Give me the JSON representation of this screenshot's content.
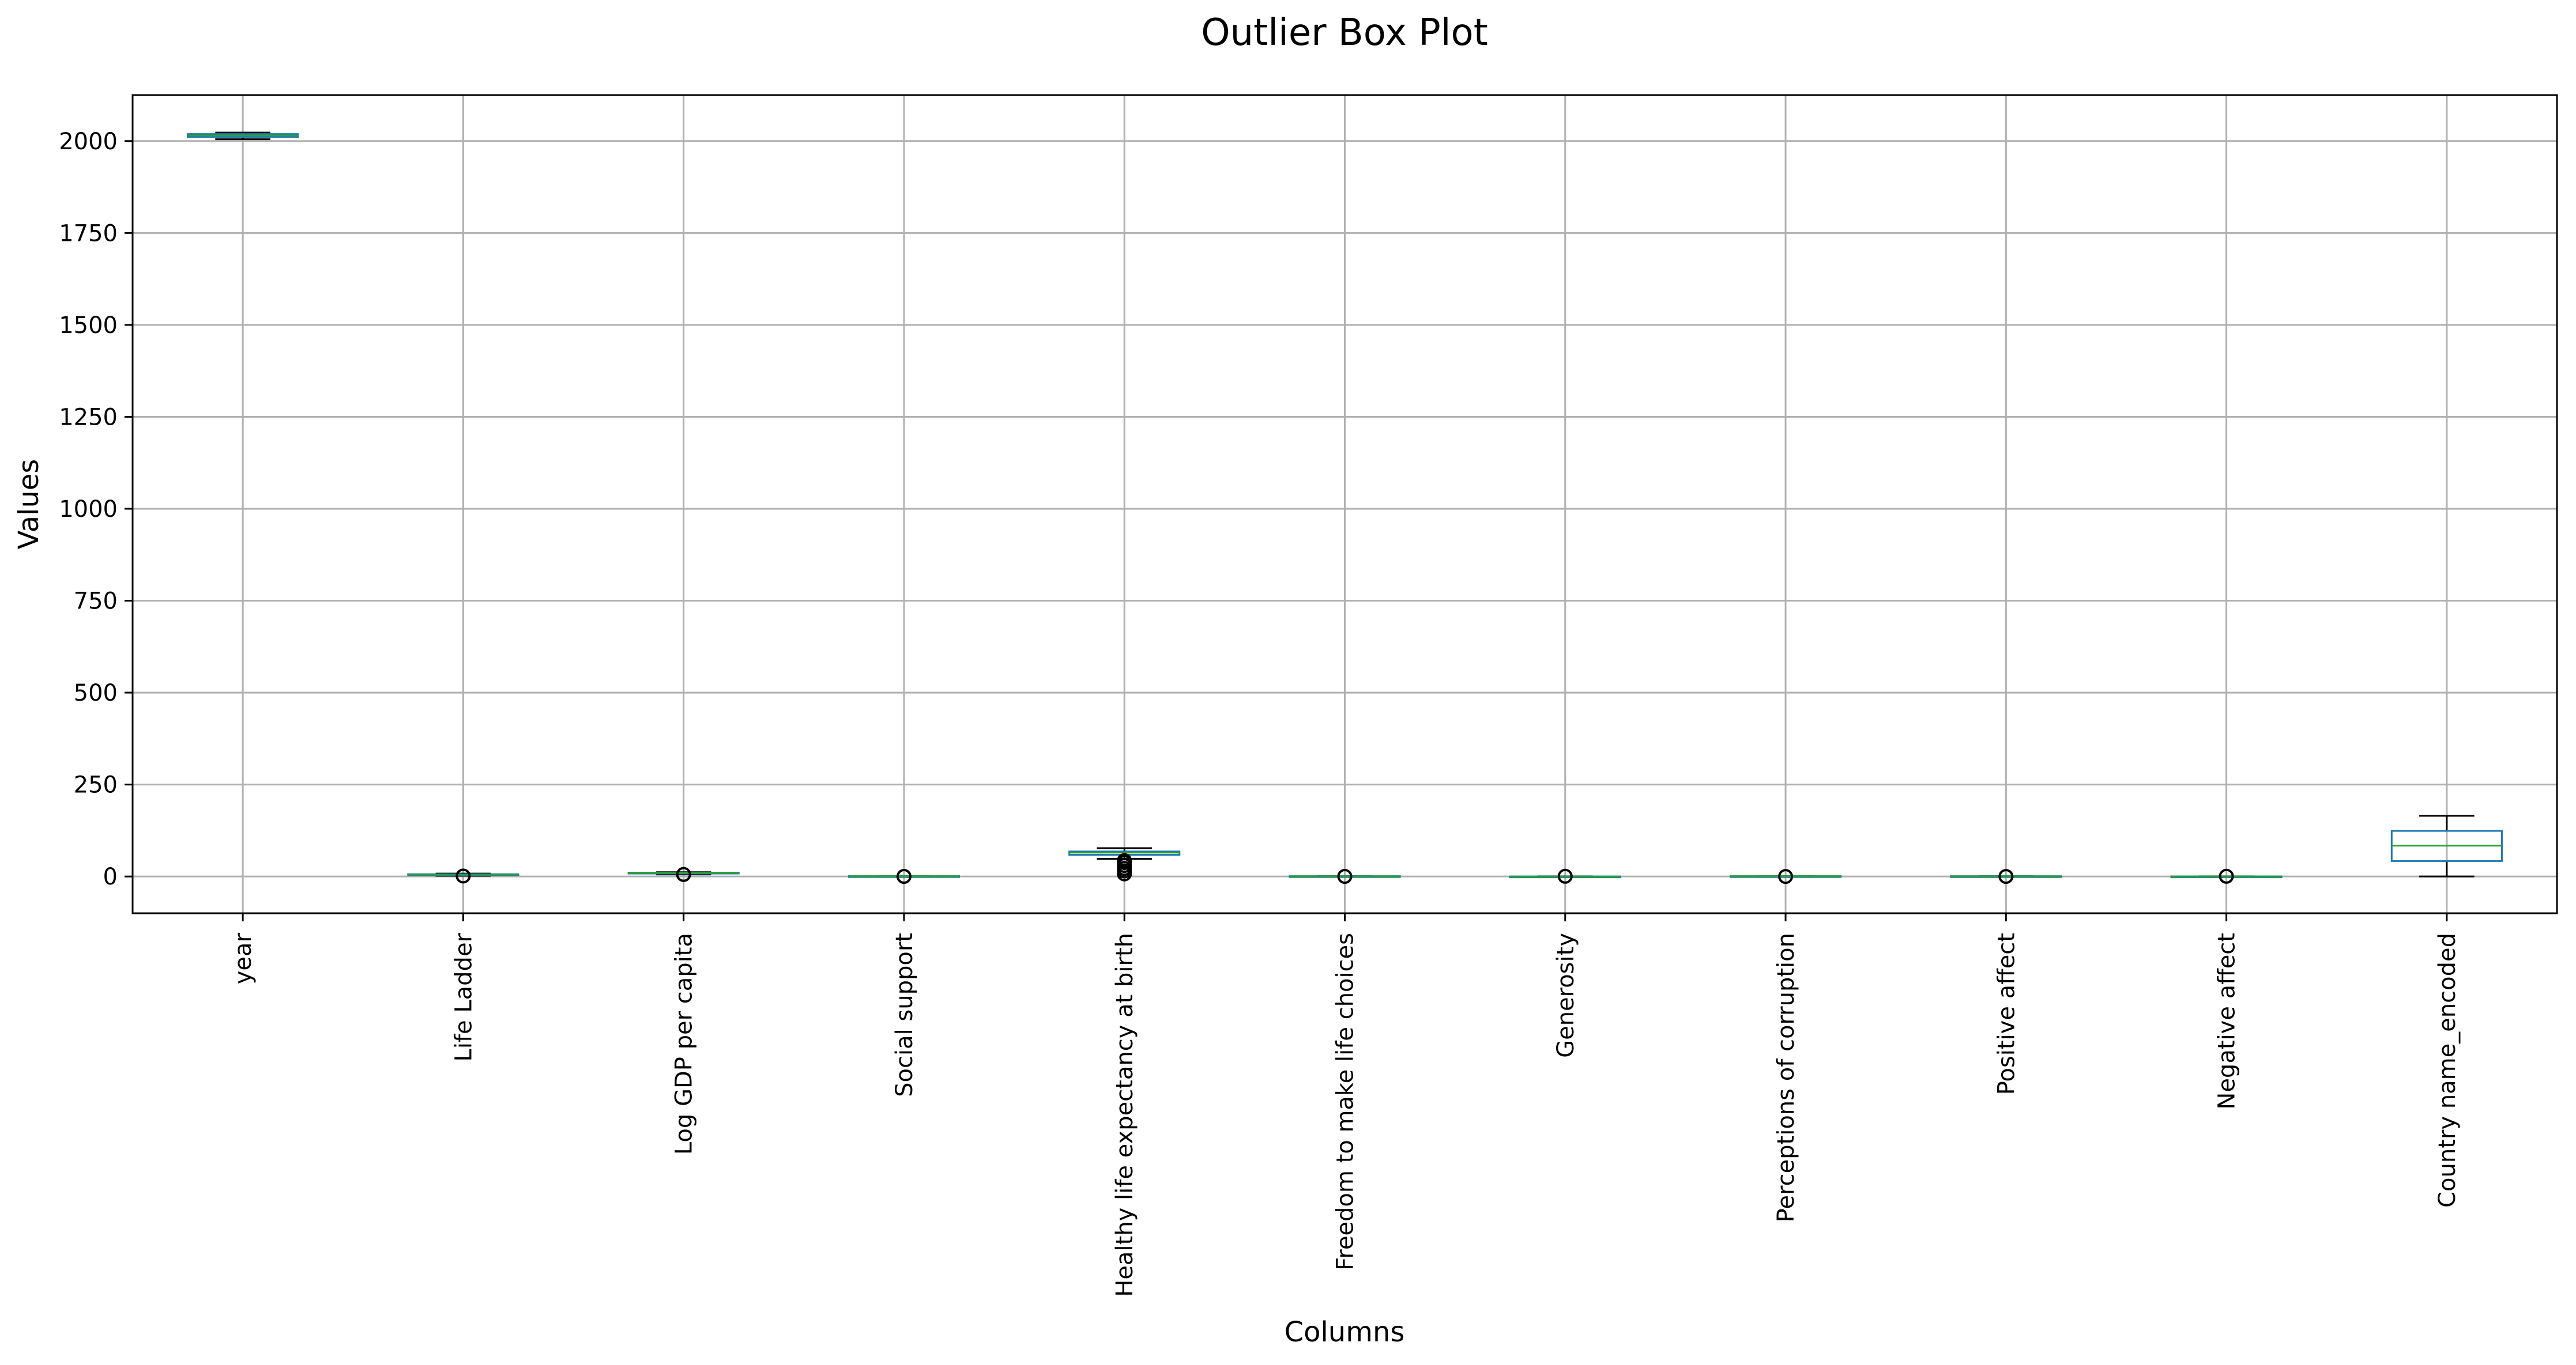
{
  "chart_data": {
    "type": "box",
    "title": "Outlier Box Plot",
    "xlabel": "Columns",
    "ylabel": "Values",
    "ylim": [
      -100,
      2125
    ],
    "yticks": [
      0,
      250,
      500,
      750,
      1000,
      1250,
      1500,
      1750,
      2000
    ],
    "grid": true,
    "series": [
      {
        "name": "year",
        "whislo": 2005,
        "q1": 2011,
        "med": 2015,
        "q3": 2019,
        "whishi": 2023,
        "fliers": []
      },
      {
        "name": "Life Ladder",
        "whislo": 2.0,
        "q1": 4.6,
        "med": 5.4,
        "q3": 6.2,
        "whishi": 8.0,
        "fliers": [
          1.3
        ]
      },
      {
        "name": "Log GDP per capita",
        "whislo": 5.5,
        "q1": 8.5,
        "med": 9.5,
        "q3": 10.4,
        "whishi": 11.7,
        "fliers": [
          5.5
        ]
      },
      {
        "name": "Social support",
        "whislo": 0.3,
        "q1": 0.75,
        "med": 0.83,
        "q3": 0.9,
        "whishi": 0.99,
        "fliers": [
          0.2
        ]
      },
      {
        "name": "Healthy life expectancy at birth",
        "whislo": 48,
        "q1": 59,
        "med": 65,
        "q3": 68,
        "whishi": 77,
        "fliers": [
          7,
          15,
          22,
          30,
          38,
          43
        ]
      },
      {
        "name": "Freedom to make life choices",
        "whislo": 0.35,
        "q1": 0.66,
        "med": 0.77,
        "q3": 0.86,
        "whishi": 0.99,
        "fliers": [
          0.25
        ]
      },
      {
        "name": "Generosity",
        "whislo": -0.3,
        "q1": -0.1,
        "med": -0.02,
        "q3": 0.09,
        "whishi": 0.4,
        "fliers": [
          0.6
        ]
      },
      {
        "name": "Perceptions of corruption",
        "whislo": 0.4,
        "q1": 0.69,
        "med": 0.8,
        "q3": 0.87,
        "whishi": 0.98,
        "fliers": [
          0.04
        ]
      },
      {
        "name": "Positive affect",
        "whislo": 0.3,
        "q1": 0.57,
        "med": 0.66,
        "q3": 0.74,
        "whishi": 0.88,
        "fliers": [
          0.18
        ]
      },
      {
        "name": "Negative affect",
        "whislo": 0.08,
        "q1": 0.21,
        "med": 0.26,
        "q3": 0.33,
        "whishi": 0.5,
        "fliers": [
          0.65
        ]
      },
      {
        "name": "Country name_encoded",
        "whislo": 0,
        "q1": 42,
        "med": 84,
        "q3": 124,
        "whishi": 165,
        "fliers": []
      }
    ]
  }
}
